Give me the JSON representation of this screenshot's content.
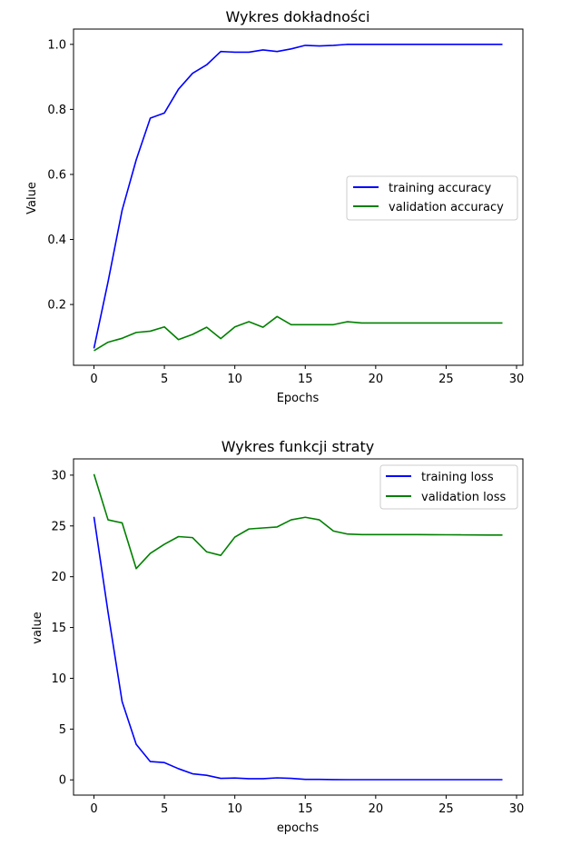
{
  "chart_data": [
    {
      "type": "line",
      "title": "Wykres dokładności",
      "xlabel": "Epochs",
      "ylabel": "Value",
      "xlim": [
        -1.45,
        30.45
      ],
      "ylim": [
        0.013,
        1.047
      ],
      "xticks": [
        0,
        5,
        10,
        15,
        20,
        25,
        30
      ],
      "yticks": [
        0.2,
        0.4,
        0.6,
        0.8,
        1.0
      ],
      "ytick_labels": [
        "0.2",
        "0.4",
        "0.6",
        "0.8",
        "1.0"
      ],
      "grid": false,
      "legend_position": "center-right",
      "x": [
        0,
        1,
        2,
        3,
        4,
        5,
        6,
        7,
        8,
        9,
        10,
        11,
        12,
        13,
        14,
        15,
        16,
        17,
        18,
        19,
        20,
        21,
        22,
        23,
        24,
        25,
        26,
        27,
        28,
        29
      ],
      "series": [
        {
          "name": "training accuracy",
          "color": "#0000ff",
          "values": [
            0.065,
            0.27,
            0.49,
            0.645,
            0.773,
            0.789,
            0.862,
            0.911,
            0.937,
            0.978,
            0.976,
            0.976,
            0.983,
            0.978,
            0.986,
            0.997,
            0.995,
            0.997,
            1.0,
            1.0,
            1.0,
            1.0,
            1.0,
            1.0,
            1.0,
            1.0,
            1.0,
            1.0,
            1.0,
            1.0
          ]
        },
        {
          "name": "validation accuracy",
          "color": "#008000",
          "values": [
            0.058,
            0.084,
            0.096,
            0.114,
            0.118,
            0.131,
            0.092,
            0.108,
            0.13,
            0.095,
            0.131,
            0.147,
            0.13,
            0.163,
            0.138,
            0.138,
            0.138,
            0.138,
            0.147,
            0.143,
            0.143,
            0.143,
            0.143,
            0.143,
            0.143,
            0.143,
            0.143,
            0.143,
            0.143,
            0.143
          ]
        }
      ]
    },
    {
      "type": "line",
      "title": "Wykres funkcji straty",
      "xlabel": "epochs",
      "ylabel": "value",
      "xlim": [
        -1.45,
        30.45
      ],
      "ylim": [
        -1.5,
        31.6
      ],
      "xticks": [
        0,
        5,
        10,
        15,
        20,
        25,
        30
      ],
      "yticks": [
        0,
        5,
        10,
        15,
        20,
        25,
        30
      ],
      "ytick_labels": [
        "0",
        "5",
        "10",
        "15",
        "20",
        "25",
        "30"
      ],
      "grid": false,
      "legend_position": "top-right",
      "x": [
        0,
        1,
        2,
        3,
        4,
        5,
        6,
        7,
        8,
        9,
        10,
        11,
        12,
        13,
        14,
        15,
        16,
        17,
        18,
        19,
        20,
        21,
        22,
        23,
        24,
        25,
        26,
        27,
        28,
        29
      ],
      "series": [
        {
          "name": "training loss",
          "color": "#0000ff",
          "values": [
            25.9,
            16.5,
            7.7,
            3.5,
            1.8,
            1.7,
            1.1,
            0.6,
            0.45,
            0.15,
            0.18,
            0.12,
            0.12,
            0.2,
            0.15,
            0.05,
            0.05,
            0.03,
            0.02,
            0.02,
            0.02,
            0.02,
            0.02,
            0.02,
            0.02,
            0.02,
            0.02,
            0.02,
            0.02,
            0.02
          ]
        },
        {
          "name": "validation loss",
          "color": "#008000",
          "values": [
            30.1,
            25.6,
            25.3,
            20.8,
            22.3,
            23.2,
            23.95,
            23.85,
            22.45,
            22.1,
            23.9,
            24.7,
            24.8,
            24.9,
            25.6,
            25.85,
            25.6,
            24.5,
            24.2,
            24.15,
            24.15,
            24.15,
            24.15,
            24.15,
            24.14,
            24.13,
            24.12,
            24.11,
            24.1,
            24.1
          ]
        }
      ]
    }
  ]
}
